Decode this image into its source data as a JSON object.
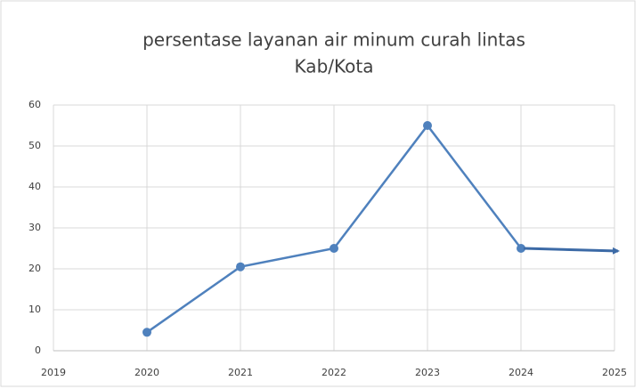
{
  "chart_data": {
    "type": "line",
    "title": [
      "persentase layanan air minum curah lintas",
      "Kab/Kota"
    ],
    "x": [
      2020,
      2021,
      2022,
      2023,
      2024
    ],
    "series": [
      {
        "color": "#4f81bd",
        "values": [
          4.5,
          20.5,
          25,
          55,
          25
        ]
      }
    ],
    "xlim": [
      2019,
      2025
    ],
    "xticks": [
      2019,
      2020,
      2021,
      2022,
      2023,
      2024,
      2025
    ],
    "ylim": [
      0,
      60
    ],
    "yticks": [
      0,
      10,
      20,
      30,
      40,
      50,
      60
    ],
    "grid": true
  }
}
